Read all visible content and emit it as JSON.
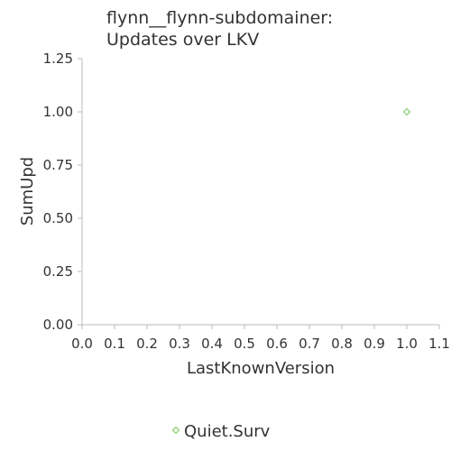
{
  "chart_data": {
    "type": "scatter",
    "title_lines": [
      "flynn__flynn-subdomainer:",
      "Updates over LKV"
    ],
    "xlabel": "LastKnownVersion",
    "ylabel": "SumUpd",
    "xlim": [
      0.0,
      1.1
    ],
    "ylim": [
      0.0,
      1.25
    ],
    "x_ticks": [
      "0.0",
      "0.1",
      "0.2",
      "0.3",
      "0.4",
      "0.5",
      "0.6",
      "0.7",
      "0.8",
      "0.9",
      "1.0",
      "1.1"
    ],
    "y_ticks": [
      "0.00",
      "0.25",
      "0.50",
      "0.75",
      "1.00",
      "1.25"
    ],
    "grid": false,
    "legend_position": "bottom",
    "series": [
      {
        "name": "Quiet.Surv",
        "color": "#8fd17a",
        "marker": "diamond-open",
        "points": [
          {
            "x": 1.0,
            "y": 1.0
          }
        ]
      }
    ]
  }
}
